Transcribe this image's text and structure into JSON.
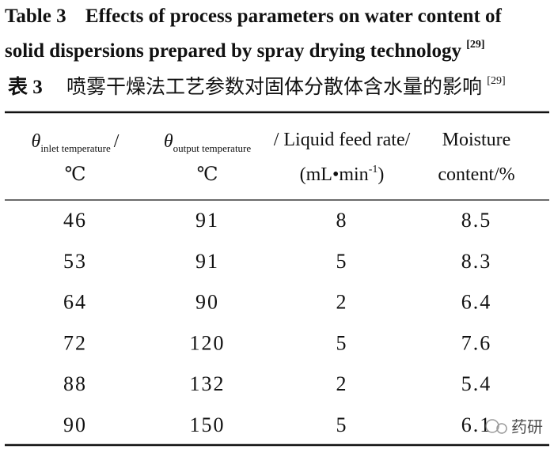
{
  "title_en": {
    "label": "Table 3",
    "line1": "Effects of process parameters on water content of",
    "line2": "solid dispersions prepared by spray drying technology",
    "ref": "[29]"
  },
  "title_cn": {
    "label": "表 3",
    "text": "喷雾干燥法工艺参数对固体分散体含水量的影响",
    "ref": "[29]"
  },
  "table": {
    "headers": [
      {
        "symbol": "θ",
        "subscript": "inlet temperature",
        "suffix": "/",
        "unit": "℃"
      },
      {
        "symbol": "θ",
        "subscript": "output temperature",
        "suffix": "/",
        "unit": "℃"
      },
      {
        "text": "/ Liquid feed rate/",
        "unit_prefix": "(mL•min",
        "unit_sup": "-1",
        "unit_suffix": ")"
      },
      {
        "text": "Moisture",
        "unit": "content/%"
      }
    ],
    "rows": [
      [
        46,
        91,
        8,
        8.5
      ],
      [
        53,
        91,
        5,
        8.3
      ],
      [
        64,
        90,
        2,
        6.4
      ],
      [
        72,
        120,
        5,
        7.6
      ],
      [
        88,
        132,
        2,
        5.4
      ],
      [
        90,
        150,
        5,
        6.1
      ]
    ]
  },
  "watermark": "药研"
}
